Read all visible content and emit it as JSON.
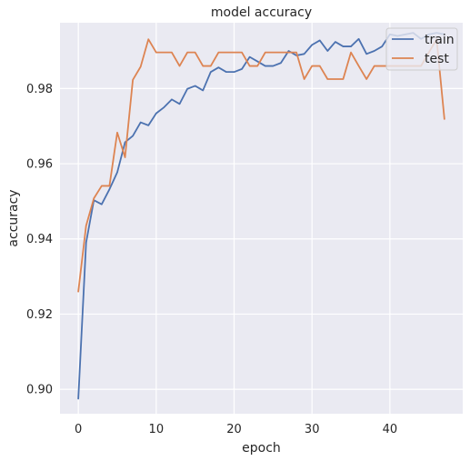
{
  "chart_data": {
    "type": "line",
    "title": "model accuracy",
    "xlabel": "epoch",
    "ylabel": "accuracy",
    "xlim": [
      -2.35,
      49.35
    ],
    "ylim": [
      0.8935,
      0.9975
    ],
    "xticks": [
      0,
      10,
      20,
      30,
      40
    ],
    "yticks": [
      0.9,
      0.92,
      0.94,
      0.96,
      0.98
    ],
    "ytick_labels": [
      "0.90",
      "0.92",
      "0.94",
      "0.96",
      "0.98"
    ],
    "grid": true,
    "legend_position": "top-right",
    "background": "#eaeaf2",
    "x": [
      0,
      1,
      2,
      3,
      4,
      5,
      6,
      7,
      8,
      9,
      10,
      11,
      12,
      13,
      14,
      15,
      16,
      17,
      18,
      19,
      20,
      21,
      22,
      23,
      24,
      25,
      26,
      27,
      28,
      29,
      30,
      31,
      32,
      33,
      34,
      35,
      36,
      37,
      38,
      39,
      40,
      41,
      42,
      43,
      44,
      45,
      46,
      47
    ],
    "series": [
      {
        "name": "train",
        "color": "#4c72b0",
        "values": [
          0.8975,
          0.939,
          0.9503,
          0.9492,
          0.9532,
          0.9577,
          0.9657,
          0.9674,
          0.971,
          0.9702,
          0.9734,
          0.975,
          0.9771,
          0.9759,
          0.9799,
          0.9807,
          0.9795,
          0.9844,
          0.9856,
          0.9844,
          0.9844,
          0.9852,
          0.9884,
          0.9872,
          0.986,
          0.986,
          0.9868,
          0.99,
          0.9888,
          0.9892,
          0.9916,
          0.9928,
          0.99,
          0.9924,
          0.9912,
          0.9912,
          0.9932,
          0.9892,
          0.99,
          0.9912,
          0.9944,
          0.994,
          0.9944,
          0.9948,
          0.9932,
          0.9944,
          0.9948,
          0.9944
        ]
      },
      {
        "name": "test",
        "color": "#dd8452",
        "values": [
          0.926,
          0.9435,
          0.9508,
          0.9541,
          0.9541,
          0.9683,
          0.9617,
          0.9823,
          0.9858,
          0.9931,
          0.9896,
          0.9896,
          0.9896,
          0.986,
          0.9896,
          0.9896,
          0.986,
          0.986,
          0.9896,
          0.9896,
          0.9896,
          0.9896,
          0.986,
          0.986,
          0.9896,
          0.9896,
          0.9896,
          0.9896,
          0.9896,
          0.9825,
          0.986,
          0.986,
          0.9825,
          0.9825,
          0.9825,
          0.9896,
          0.986,
          0.9825,
          0.986,
          0.986,
          0.986,
          0.986,
          0.986,
          0.986,
          0.986,
          0.9896,
          0.9931,
          0.9719
        ]
      }
    ]
  }
}
